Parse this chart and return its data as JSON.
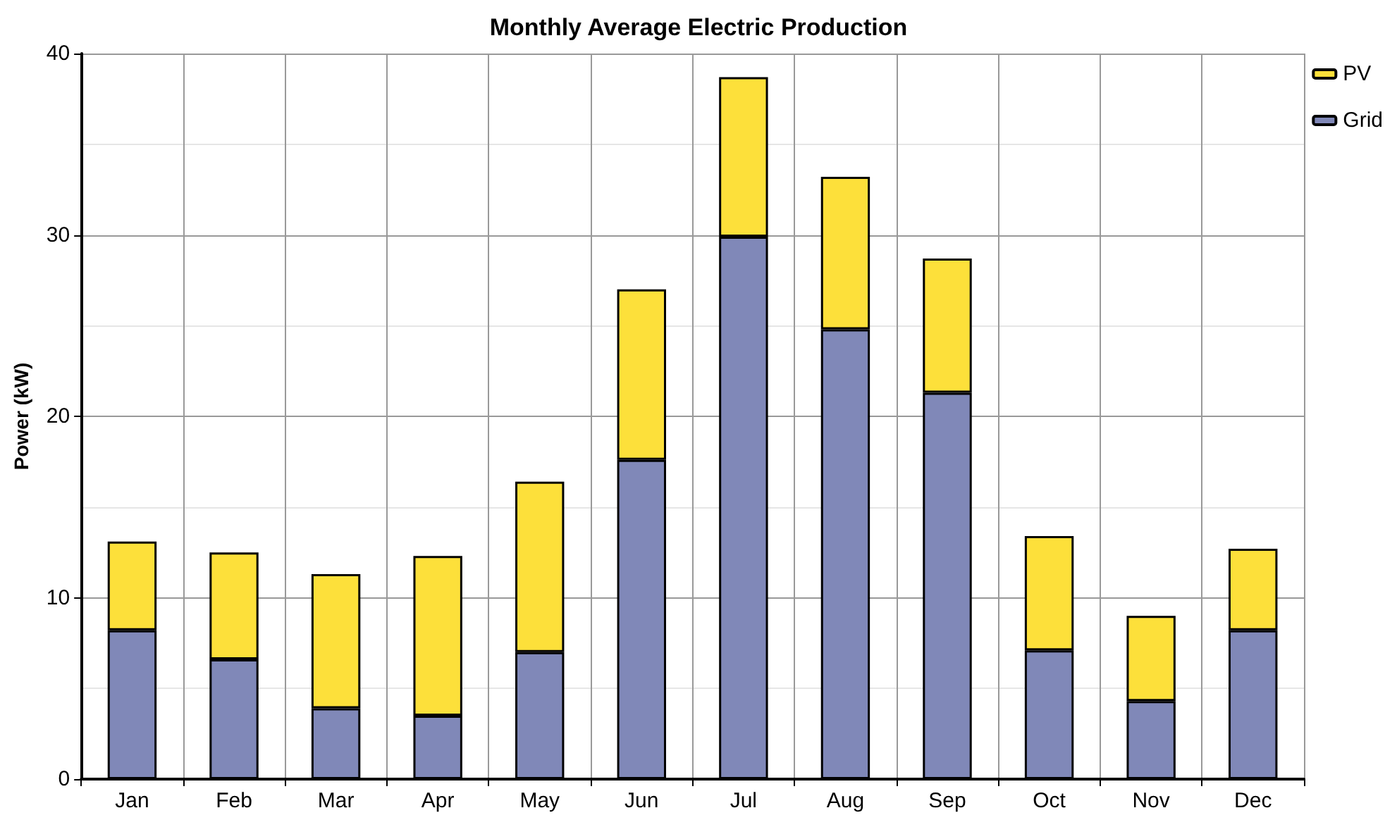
{
  "chart_data": {
    "type": "bar",
    "title": "Monthly Average Electric Production",
    "ylabel": "Power (kW)",
    "categories": [
      "Jan",
      "Feb",
      "Mar",
      "Apr",
      "May",
      "Jun",
      "Jul",
      "Aug",
      "Sep",
      "Oct",
      "Nov",
      "Dec"
    ],
    "stacked": true,
    "series": [
      {
        "name": "Grid",
        "color": "#8088b8",
        "values": [
          8.2,
          6.6,
          3.9,
          3.5,
          7.0,
          17.6,
          29.9,
          24.8,
          21.3,
          7.1,
          4.3,
          8.2
        ]
      },
      {
        "name": "PV",
        "color": "#fde03a",
        "values": [
          4.9,
          5.9,
          7.4,
          8.8,
          9.4,
          9.4,
          8.8,
          8.4,
          7.4,
          6.3,
          4.7,
          4.5
        ]
      }
    ],
    "ylim": [
      0,
      40
    ],
    "yticks": [
      0,
      10,
      20,
      30,
      40
    ],
    "grid": true,
    "legend": "top right"
  }
}
